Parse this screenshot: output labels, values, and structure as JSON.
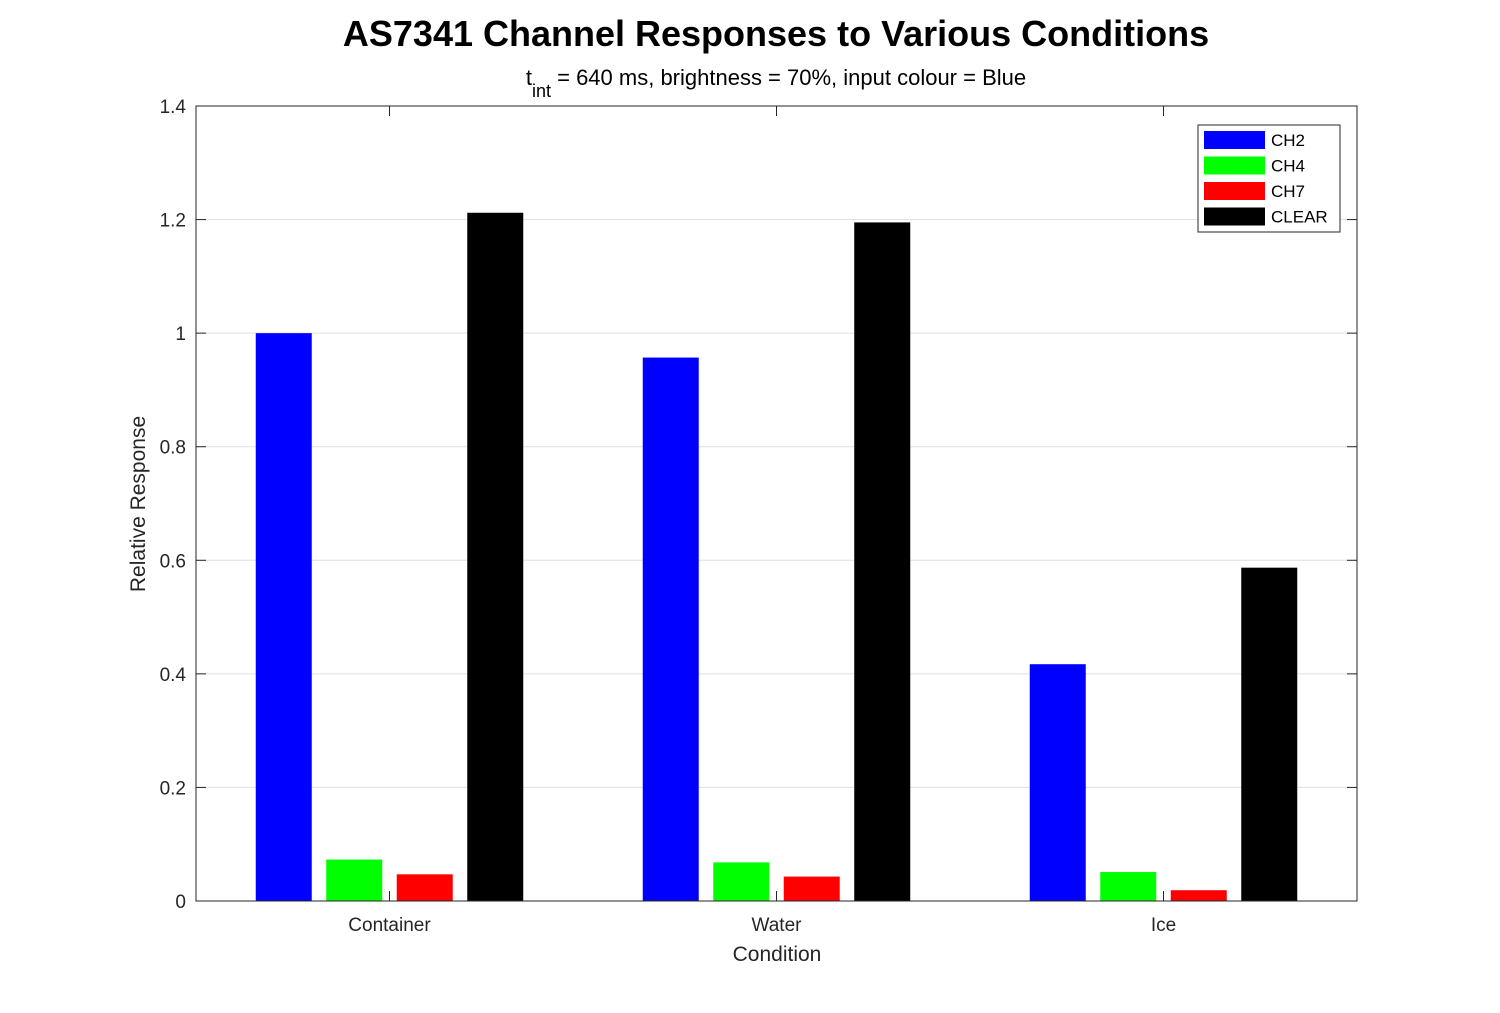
{
  "chart_data": {
    "type": "bar",
    "title": "AS7341 Channel Responses to Various Conditions",
    "subtitle": {
      "t_base": "t",
      "t_sub": "int",
      "rest": " = 640 ms, brightness = 70%, input colour = Blue"
    },
    "xlabel": "Condition",
    "ylabel": "Relative Response",
    "categories": [
      "Container",
      "Water",
      "Ice"
    ],
    "ylim": [
      0,
      1.4
    ],
    "yticks": [
      0,
      0.2,
      0.4,
      0.6,
      0.8,
      1,
      1.2,
      1.4
    ],
    "ytick_labels": [
      "0",
      "0.2",
      "0.4",
      "0.6",
      "0.8",
      "1",
      "1.2",
      "1.4"
    ],
    "grid": true,
    "legend_position": "top-right",
    "series": [
      {
        "name": "CH2",
        "color": "#0000ff",
        "values": [
          1.0,
          0.957,
          0.417
        ]
      },
      {
        "name": "CH4",
        "color": "#00ff00",
        "values": [
          0.073,
          0.068,
          0.051
        ]
      },
      {
        "name": "CH7",
        "color": "#ff0000",
        "values": [
          0.047,
          0.043,
          0.019
        ]
      },
      {
        "name": "CLEAR",
        "color": "#000000",
        "values": [
          1.212,
          1.195,
          0.587
        ]
      }
    ]
  }
}
